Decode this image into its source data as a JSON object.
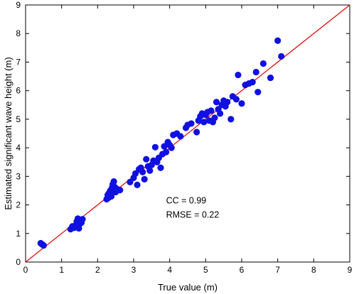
{
  "chart_data": {
    "type": "scatter",
    "title": "",
    "xlabel": "True value (m)",
    "ylabel": "Estimated significant wave height (m)",
    "xlim": [
      0,
      9
    ],
    "ylim": [
      0,
      9
    ],
    "xticks": [
      0,
      1,
      2,
      3,
      4,
      5,
      6,
      7,
      8,
      9
    ],
    "yticks": [
      0,
      1,
      2,
      3,
      4,
      5,
      6,
      7,
      8,
      9
    ],
    "grid": false,
    "point_color": "#1010e0",
    "line_color": "#e01010",
    "reference_line": {
      "from": [
        0,
        0
      ],
      "to": [
        9,
        9
      ]
    },
    "annotations": [
      {
        "text": "CC = 0.99",
        "x": 3.9,
        "y": 2.05
      },
      {
        "text": "RMSE = 0.22",
        "x": 3.9,
        "y": 1.55
      }
    ],
    "points": [
      [
        0.42,
        0.66
      ],
      [
        0.46,
        0.62
      ],
      [
        0.5,
        0.58
      ],
      [
        1.25,
        1.15
      ],
      [
        1.3,
        1.25
      ],
      [
        1.35,
        1.2
      ],
      [
        1.4,
        1.3
      ],
      [
        1.42,
        1.42
      ],
      [
        1.45,
        1.52
      ],
      [
        1.48,
        1.18
      ],
      [
        1.52,
        1.35
      ],
      [
        1.55,
        1.45
      ],
      [
        1.58,
        1.5
      ],
      [
        1.55,
        1.38
      ],
      [
        2.25,
        2.2
      ],
      [
        2.28,
        2.35
      ],
      [
        2.3,
        2.25
      ],
      [
        2.32,
        2.42
      ],
      [
        2.35,
        2.5
      ],
      [
        2.38,
        2.3
      ],
      [
        2.4,
        2.6
      ],
      [
        2.42,
        2.72
      ],
      [
        2.45,
        2.82
      ],
      [
        2.48,
        2.62
      ],
      [
        2.5,
        2.45
      ],
      [
        2.55,
        2.55
      ],
      [
        2.62,
        2.52
      ],
      [
        2.9,
        2.8
      ],
      [
        3.0,
        2.95
      ],
      [
        3.05,
        3.1
      ],
      [
        3.1,
        2.7
      ],
      [
        3.15,
        3.25
      ],
      [
        3.2,
        3.3
      ],
      [
        3.25,
        3.15
      ],
      [
        3.3,
        2.9
      ],
      [
        3.35,
        3.6
      ],
      [
        3.4,
        3.35
      ],
      [
        3.45,
        3.2
      ],
      [
        3.5,
        3.4
      ],
      [
        3.55,
        3.55
      ],
      [
        3.6,
        4.02
      ],
      [
        3.65,
        3.5
      ],
      [
        3.7,
        3.65
      ],
      [
        3.75,
        3.3
      ],
      [
        3.8,
        3.78
      ],
      [
        3.85,
        4.05
      ],
      [
        3.9,
        3.85
      ],
      [
        3.95,
        4.2
      ],
      [
        4.0,
        4.1
      ],
      [
        4.05,
        4.0
      ],
      [
        4.1,
        4.45
      ],
      [
        4.2,
        4.5
      ],
      [
        4.3,
        4.4
      ],
      [
        4.45,
        4.7
      ],
      [
        4.5,
        4.8
      ],
      [
        4.6,
        4.85
      ],
      [
        4.75,
        4.55
      ],
      [
        4.8,
        4.95
      ],
      [
        4.85,
        5.1
      ],
      [
        4.9,
        5.2
      ],
      [
        4.95,
        4.9
      ],
      [
        5.0,
        5.15
      ],
      [
        5.05,
        5.25
      ],
      [
        5.1,
        4.95
      ],
      [
        5.15,
        5.3
      ],
      [
        5.2,
        4.9
      ],
      [
        5.25,
        5.05
      ],
      [
        5.3,
        5.6
      ],
      [
        5.35,
        5.35
      ],
      [
        5.4,
        5.2
      ],
      [
        5.45,
        5.5
      ],
      [
        5.5,
        5.65
      ],
      [
        5.55,
        5.45
      ],
      [
        5.6,
        5.6
      ],
      [
        5.7,
        5.0
      ],
      [
        5.75,
        5.8
      ],
      [
        5.85,
        5.7
      ],
      [
        5.9,
        6.55
      ],
      [
        6.0,
        5.55
      ],
      [
        6.1,
        6.2
      ],
      [
        6.2,
        6.25
      ],
      [
        6.3,
        6.3
      ],
      [
        6.4,
        6.65
      ],
      [
        6.45,
        5.95
      ],
      [
        6.6,
        6.95
      ],
      [
        6.8,
        6.45
      ],
      [
        7.0,
        7.75
      ],
      [
        7.1,
        7.2
      ]
    ]
  }
}
